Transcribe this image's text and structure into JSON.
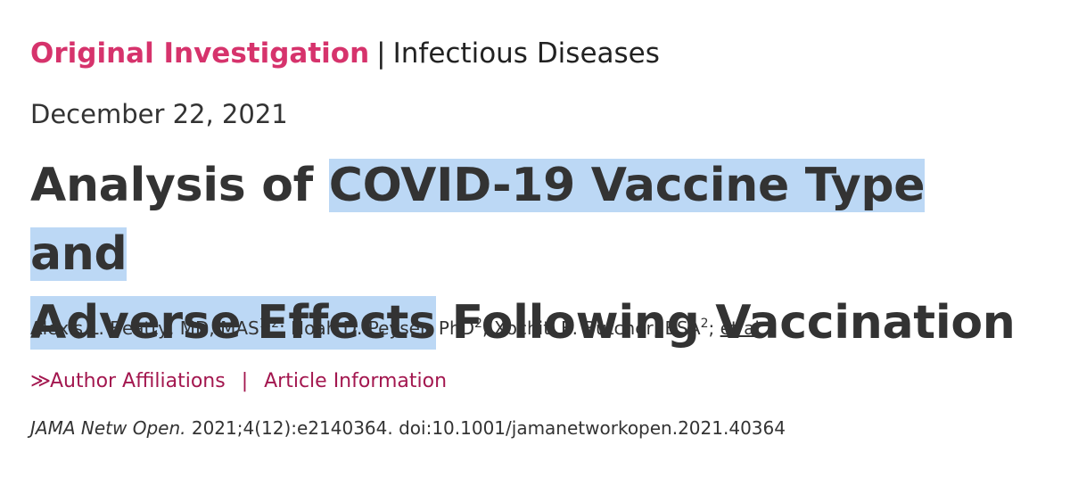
{
  "category": {
    "primary": "Original Investigation",
    "separator": "|",
    "secondary": "Infectious Diseases"
  },
  "date": "December 22, 2021",
  "title": {
    "before": "Analysis of ",
    "highlight_1": "COVID-19 Vaccine Type and",
    "highlight_2": "Adverse Effects",
    "after": " Following Vaccination"
  },
  "authors": [
    {
      "name": "Alexis L. Beatty, MD, MAS",
      "affiliation": "1,2",
      "sep": "; "
    },
    {
      "name": "Noah D. Peyser, PhD",
      "affiliation": "2",
      "sep": "; "
    },
    {
      "name": "Xochitl E. Butcher, BSA",
      "affiliation": "2",
      "sep": "; "
    }
  ],
  "authors_more": "et al",
  "links": {
    "chevron": "≫",
    "author_affiliations": "Author Affiliations",
    "separator": "|",
    "article_information": "Article Information"
  },
  "citation": {
    "journal": "JAMA Netw Open.",
    "details": " 2021;4(12):e2140364. doi:10.1001/jamanetworkopen.2021.40364"
  },
  "colors": {
    "category_accent": "#d6336c",
    "link": "#a3174f",
    "highlight": "#bcd8f5",
    "text": "#333333"
  }
}
